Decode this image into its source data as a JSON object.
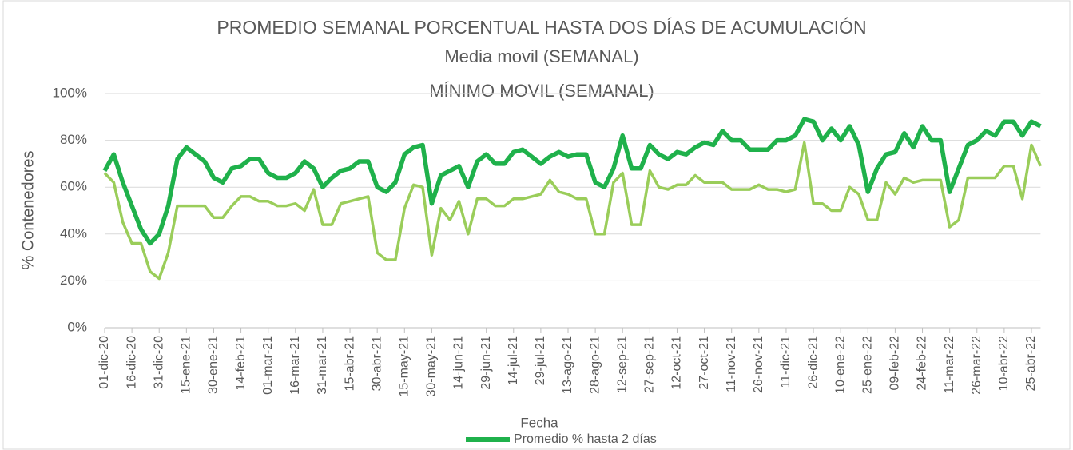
{
  "chart_data": {
    "type": "line",
    "title": "PROMEDIO SEMANAL PORCENTUAL HASTA DOS DÍAS DE ACUMULACIÓN",
    "subtitle": "Media movil (SEMANAL)",
    "annotation": "MÍNIMO MOVIL (SEMANAL)",
    "x_label": "Fecha",
    "y_label": "% Contenedores",
    "categories": [
      "01-dic-20",
      null,
      null,
      "16-dic-20",
      null,
      null,
      "31-dic-20",
      null,
      null,
      "15-ene-21",
      null,
      null,
      "30-ene-21",
      null,
      null,
      "14-feb-21",
      null,
      null,
      "01-mar-21",
      null,
      null,
      "16-mar-21",
      null,
      null,
      "31-mar-21",
      null,
      null,
      "15-abr-21",
      null,
      null,
      "30-abr-21",
      null,
      null,
      "15-may-21",
      null,
      null,
      "30-may-21",
      null,
      null,
      "14-jun-21",
      null,
      null,
      "29-jun-21",
      null,
      null,
      "14-jul-21",
      null,
      null,
      "29-jul-21",
      null,
      null,
      "13-ago-21",
      null,
      null,
      "28-ago-21",
      null,
      null,
      "12-sep-21",
      null,
      null,
      "27-sep-21",
      null,
      null,
      "12-oct-21",
      null,
      null,
      "27-oct-21",
      null,
      null,
      "11-nov-21",
      null,
      null,
      "26-nov-21",
      null,
      null,
      "11-dic-21",
      null,
      null,
      "26-dic-21",
      null,
      null,
      "10-ene-22",
      null,
      null,
      "25-ene-22",
      null,
      null,
      "09-feb-22",
      null,
      null,
      "24-feb-22",
      null,
      null,
      "11-mar-22",
      null,
      null,
      "26-mar-22",
      null,
      null,
      "10-abr-22",
      null,
      null,
      "25-abr-22",
      null
    ],
    "series": [
      {
        "color": "#9acd5a",
        "width": 3.5,
        "values": [
          66,
          62,
          45,
          36,
          36,
          24,
          21,
          32,
          52,
          52,
          52,
          52,
          47,
          47,
          52,
          56,
          56,
          54,
          54,
          52,
          52,
          53,
          50,
          59,
          44,
          44,
          53,
          54,
          55,
          56,
          32,
          29,
          29,
          51,
          61,
          60,
          31,
          51,
          46,
          54,
          40,
          55,
          55,
          52,
          52,
          55,
          55,
          56,
          57,
          63,
          58,
          57,
          55,
          55,
          40,
          40,
          62,
          66,
          44,
          44,
          67,
          60,
          59,
          61,
          61,
          65,
          62,
          62,
          62,
          59,
          59,
          59,
          61,
          59,
          59,
          58,
          59,
          79,
          53,
          53,
          50,
          50,
          60,
          57,
          46,
          46,
          62,
          57,
          64,
          62,
          63,
          63,
          63,
          43,
          46,
          64,
          64,
          64,
          64,
          69,
          69,
          55,
          78,
          69
        ]
      },
      {
        "name": "Promedio % hasta 2 días",
        "color": "#1fb14b",
        "width": 5.5,
        "values": [
          67,
          74,
          62,
          52,
          42,
          36,
          40,
          52,
          72,
          77,
          74,
          71,
          64,
          62,
          68,
          69,
          72,
          72,
          66,
          64,
          64,
          66,
          71,
          68,
          60,
          64,
          67,
          68,
          71,
          71,
          60,
          58,
          62,
          74,
          77,
          78,
          53,
          65,
          67,
          69,
          60,
          71,
          74,
          70,
          70,
          75,
          76,
          73,
          70,
          73,
          75,
          73,
          74,
          74,
          62,
          60,
          68,
          82,
          68,
          68,
          78,
          74,
          72,
          75,
          74,
          77,
          79,
          78,
          84,
          80,
          80,
          76,
          76,
          76,
          80,
          80,
          82,
          89,
          88,
          80,
          85,
          80,
          86,
          78,
          58,
          68,
          74,
          75,
          83,
          77,
          86,
          80,
          80,
          58,
          68,
          78,
          80,
          84,
          82,
          88,
          88,
          82,
          88,
          86
        ]
      }
    ],
    "ylim": [
      0,
      100
    ],
    "yticks": [
      {
        "value": 0,
        "label": "0%"
      },
      {
        "value": 20,
        "label": "20%"
      },
      {
        "value": 40,
        "label": "40%"
      },
      {
        "value": 60,
        "label": "60%"
      },
      {
        "value": 80,
        "label": "80%"
      },
      {
        "value": 100,
        "label": "100%"
      }
    ],
    "grid": true
  }
}
